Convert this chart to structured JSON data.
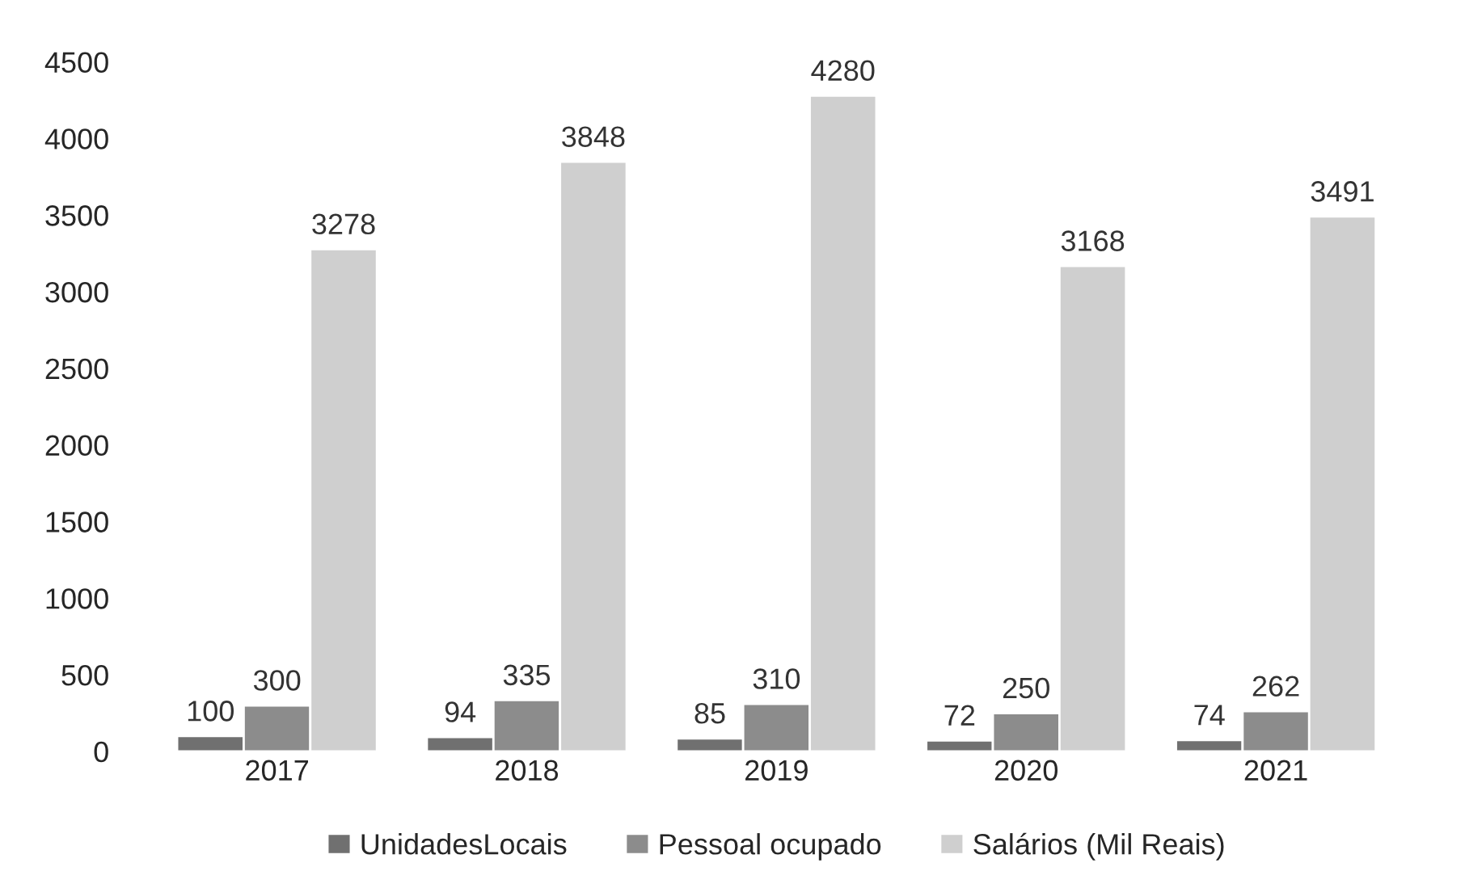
{
  "chart_data": {
    "type": "bar",
    "categories": [
      "2017",
      "2018",
      "2019",
      "2020",
      "2021"
    ],
    "series": [
      {
        "name": "UnidadesLocais",
        "color": "#707070",
        "values": [
          100,
          94,
          85,
          72,
          74
        ]
      },
      {
        "name": "Pessoal ocupado",
        "color": "#8c8c8c",
        "values": [
          300,
          335,
          310,
          250,
          262
        ]
      },
      {
        "name": "Salários (Mil Reais)",
        "color": "#cfcfcf",
        "values": [
          3278,
          3848,
          4280,
          3168,
          3491
        ]
      }
    ],
    "ylim": [
      0,
      4500
    ],
    "yticks": [
      0,
      500,
      1000,
      1500,
      2000,
      2500,
      3000,
      3500,
      4000,
      4500
    ],
    "data_labels": true,
    "legend": "bottom",
    "grid": false
  }
}
